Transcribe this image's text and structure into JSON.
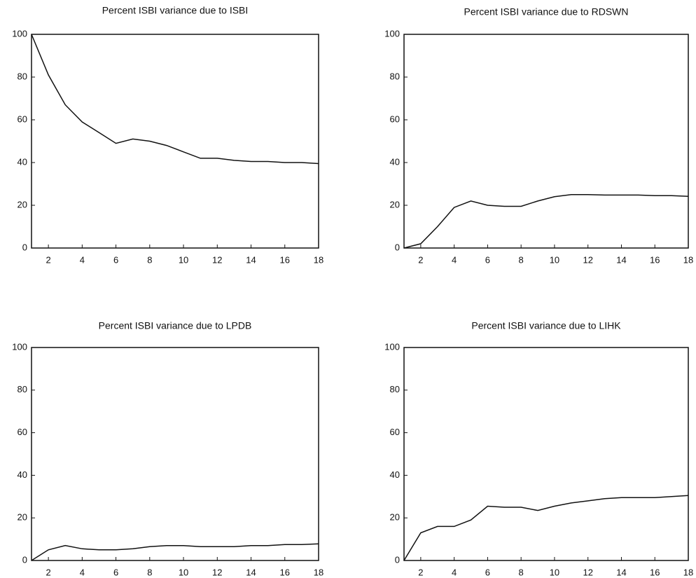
{
  "chart_data": [
    {
      "type": "line",
      "title": "Percent ISBI variance due to ISBI",
      "x": [
        1,
        2,
        3,
        4,
        5,
        6,
        7,
        8,
        9,
        10,
        11,
        12,
        13,
        14,
        15,
        16,
        17,
        18
      ],
      "series": [
        {
          "color": "#111111",
          "values": [
            100,
            81,
            67,
            59,
            54,
            49,
            51,
            50,
            48,
            45,
            42,
            42,
            41,
            40.5,
            40.5,
            40,
            40,
            39.5
          ]
        }
      ],
      "xlim": [
        1,
        18
      ],
      "xticks": [
        2,
        4,
        6,
        8,
        10,
        12,
        14,
        16,
        18
      ],
      "ylim": [
        0,
        100
      ],
      "yticks": [
        0,
        20,
        40,
        60,
        80,
        100
      ]
    },
    {
      "type": "line",
      "title": "Percent ISBI variance due to RDSWN",
      "x": [
        1,
        2,
        3,
        4,
        5,
        6,
        7,
        8,
        9,
        10,
        11,
        12,
        13,
        14,
        15,
        16,
        17,
        18
      ],
      "series": [
        {
          "color": "#111111",
          "values": [
            0,
            2,
            10,
            19,
            22,
            20,
            19.5,
            19.5,
            22,
            24,
            25,
            25,
            24.8,
            24.8,
            24.8,
            24.5,
            24.5,
            24.2
          ]
        }
      ],
      "xlim": [
        1,
        18
      ],
      "xticks": [
        2,
        4,
        6,
        8,
        10,
        12,
        14,
        16,
        18
      ],
      "ylim": [
        0,
        100
      ],
      "yticks": [
        0,
        20,
        40,
        60,
        80,
        100
      ]
    },
    {
      "type": "line",
      "title": "Percent ISBI variance due to LPDB",
      "x": [
        1,
        2,
        3,
        4,
        5,
        6,
        7,
        8,
        9,
        10,
        11,
        12,
        13,
        14,
        15,
        16,
        17,
        18
      ],
      "series": [
        {
          "color": "#111111",
          "values": [
            0,
            5,
            7,
            5.5,
            5,
            5,
            5.5,
            6.5,
            7,
            7,
            6.5,
            6.5,
            6.5,
            7,
            7,
            7.5,
            7.5,
            7.8
          ]
        }
      ],
      "xlim": [
        1,
        18
      ],
      "xticks": [
        2,
        4,
        6,
        8,
        10,
        12,
        14,
        16,
        18
      ],
      "ylim": [
        0,
        100
      ],
      "yticks": [
        0,
        20,
        40,
        60,
        80,
        100
      ]
    },
    {
      "type": "line",
      "title": "Percent ISBI variance due to LIHK",
      "x": [
        1,
        2,
        3,
        4,
        5,
        6,
        7,
        8,
        9,
        10,
        11,
        12,
        13,
        14,
        15,
        16,
        17,
        18
      ],
      "series": [
        {
          "color": "#111111",
          "values": [
            0,
            13,
            16,
            16,
            19,
            25.5,
            25,
            25,
            23.5,
            25.5,
            27,
            28,
            29,
            29.5,
            29.5,
            29.5,
            30,
            30.5
          ]
        }
      ],
      "xlim": [
        1,
        18
      ],
      "xticks": [
        2,
        4,
        6,
        8,
        10,
        12,
        14,
        16,
        18
      ],
      "ylim": [
        0,
        100
      ],
      "yticks": [
        0,
        20,
        40,
        60,
        80,
        100
      ]
    }
  ]
}
